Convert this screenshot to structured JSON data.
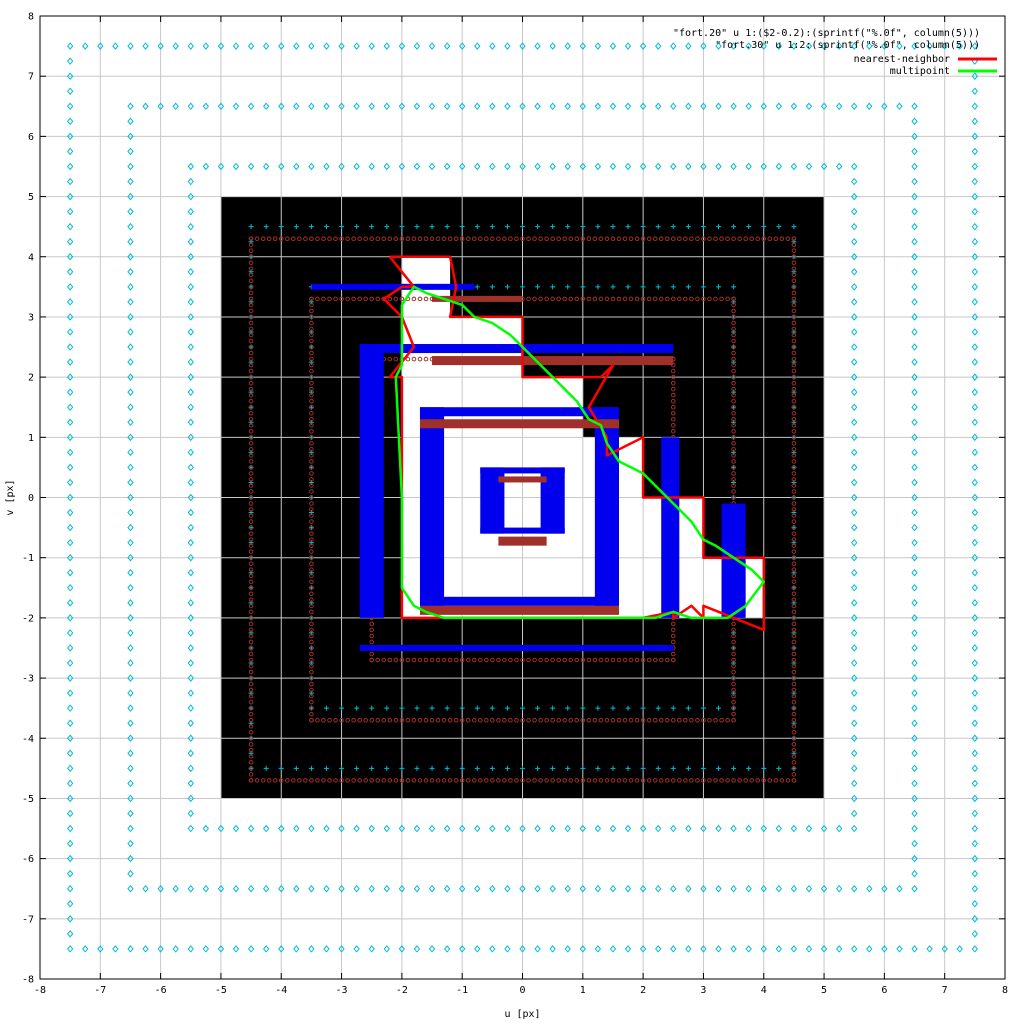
{
  "chart_data": {
    "type": "line",
    "title": "",
    "xlabel": "u [px]",
    "ylabel": "v [px]",
    "xlim": [
      -8,
      8
    ],
    "ylim": [
      -8,
      8
    ],
    "x_ticks": [
      "-8",
      "-7",
      "-6",
      "-5",
      "-4",
      "-3",
      "-2",
      "-1",
      "0",
      "1",
      "2",
      "3",
      "4",
      "5",
      "6",
      "7",
      "8"
    ],
    "y_ticks": [
      "-8",
      "-7",
      "-6",
      "-5",
      "-4",
      "-3",
      "-2",
      "-1",
      "0",
      "1",
      "2",
      "3",
      "4",
      "5",
      "6",
      "7",
      "8"
    ],
    "grid": true,
    "legend_position": "top-right",
    "legend": [
      {
        "label": "\"fort.20\" u 1:($2-0.2):(sprintf(\"%.0f\", column(5)))",
        "color": "#000000",
        "style": "text"
      },
      {
        "label": "\"fort.30\" u 1:2:(sprintf(\"%.0f\", column(5)))",
        "color": "#000000",
        "style": "text"
      },
      {
        "label": "nearest-neighbor",
        "color": "#ff0000",
        "style": "line"
      },
      {
        "label": "multipoint",
        "color": "#00ff00",
        "style": "line"
      }
    ],
    "background_region": {
      "x": [
        -5,
        5
      ],
      "y": [
        -5,
        5
      ],
      "color": "#000000"
    },
    "white_region": [
      [
        -2,
        4
      ],
      [
        -1.2,
        4
      ],
      [
        -1.2,
        3
      ],
      [
        0,
        3
      ],
      [
        0,
        2
      ],
      [
        1,
        2
      ],
      [
        1,
        1
      ],
      [
        2,
        1
      ],
      [
        2,
        0
      ],
      [
        3,
        0
      ],
      [
        3,
        -1
      ],
      [
        4,
        -1
      ],
      [
        4,
        -2
      ],
      [
        -2,
        -2
      ]
    ],
    "square_rings": [
      {
        "half": 7.5,
        "color": "#00bcd4",
        "marker": "diamond"
      },
      {
        "half": 6.5,
        "color": "#00bcd4",
        "marker": "diamond"
      },
      {
        "half": 5.5,
        "color": "#00bcd4",
        "marker": "diamond"
      },
      {
        "half": 4.5,
        "color": "#00bcd4",
        "marker": "cross"
      },
      {
        "half": 3.5,
        "color": "#00bcd4",
        "marker": "cross"
      }
    ],
    "series": [
      {
        "name": "nearest-neighbor",
        "color": "#ff0000",
        "x": [
          -2.2,
          -1.2,
          -1.1,
          -1.2,
          0,
          0,
          1.3,
          1.5,
          1.1,
          1.4,
          1.4,
          2,
          2,
          3,
          3,
          3.5,
          4,
          4,
          3,
          3,
          2.8,
          2.5,
          2.5,
          2,
          2,
          -2,
          -2,
          -2.2,
          -1.8,
          -2,
          -2.3,
          -2,
          -1.8,
          -2.2
        ],
        "y": [
          4,
          4,
          3.5,
          3,
          3,
          2,
          2,
          2.2,
          1.5,
          1,
          0.7,
          1,
          0,
          0,
          -1,
          -1,
          -1,
          -2.2,
          -1.8,
          -2,
          -1.8,
          -2,
          -1.9,
          -2,
          -2,
          -2,
          2,
          2,
          2.5,
          3,
          3.3,
          3.5,
          3.5,
          4
        ]
      },
      {
        "name": "multipoint",
        "color": "#00ff00",
        "x": [
          -2,
          -1.8,
          -1.6,
          -1.3,
          -1,
          -0.8,
          -0.5,
          -0.2,
          0,
          0.3,
          0.6,
          0.9,
          1.1,
          1.3,
          1.4,
          1.6,
          1.8,
          2,
          2.2,
          2.5,
          2.8,
          3,
          3.2,
          3.5,
          3.8,
          4,
          3.7,
          3.4,
          3.1,
          2.8,
          2.5,
          2.2,
          2,
          1.5,
          1,
          0.5,
          0,
          -0.5,
          -1,
          -1.3,
          -1.6,
          -1.8,
          -2,
          -2,
          -2.1,
          -2,
          -2,
          -2
        ],
        "y": [
          3.2,
          3.5,
          3.4,
          3.3,
          3.2,
          3,
          2.9,
          2.7,
          2.5,
          2.2,
          1.9,
          1.6,
          1.3,
          1.2,
          0.9,
          0.6,
          0.5,
          0.4,
          0.2,
          -0.1,
          -0.4,
          -0.7,
          -0.8,
          -1,
          -1.2,
          -1.4,
          -1.8,
          -2,
          -2,
          -2,
          -1.9,
          -2,
          -2,
          -2,
          -2,
          -2,
          -2,
          -2,
          -2,
          -2,
          -1.9,
          -1.8,
          -1.5,
          0,
          2,
          2.2,
          2.5,
          3.2
        ]
      }
    ]
  }
}
